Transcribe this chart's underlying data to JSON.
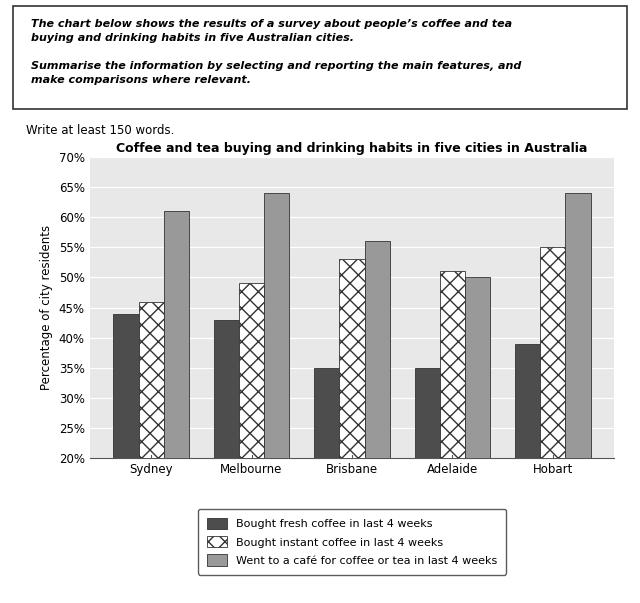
{
  "title": "Coffee and tea buying and drinking habits in five cities in Australia",
  "cities": [
    "Sydney",
    "Melbourne",
    "Brisbane",
    "Adelaide",
    "Hobart"
  ],
  "series": {
    "fresh_coffee": [
      44,
      43,
      35,
      35,
      39
    ],
    "instant_coffee": [
      46,
      49,
      53,
      51,
      55
    ],
    "cafe": [
      61,
      64,
      56,
      50,
      64
    ]
  },
  "legend_labels": [
    "Bought fresh coffee in last 4 weeks",
    "Bought instant coffee in last 4 weeks",
    "Went to a café for coffee or tea in last 4 weeks"
  ],
  "ylabel": "Percentage of city residents",
  "ylim": [
    20,
    70
  ],
  "yticks": [
    20,
    25,
    30,
    35,
    40,
    45,
    50,
    55,
    60,
    65,
    70
  ],
  "bar_width": 0.25,
  "fresh_color": "#4d4d4d",
  "instant_hatch": "xx",
  "cafe_color": "#999999",
  "chart_bg_color": "#e8e8e8",
  "text_box_line1": "The chart below shows the results of a survey about people’s coffee and tea",
  "text_box_line2": "buying and drinking habits in five Australian cities.",
  "text_box_line3": "Summarise the information by selecting and reporting the main features, and",
  "text_box_line4": "make comparisons where relevant.",
  "write_text": "Write at least 150 words."
}
